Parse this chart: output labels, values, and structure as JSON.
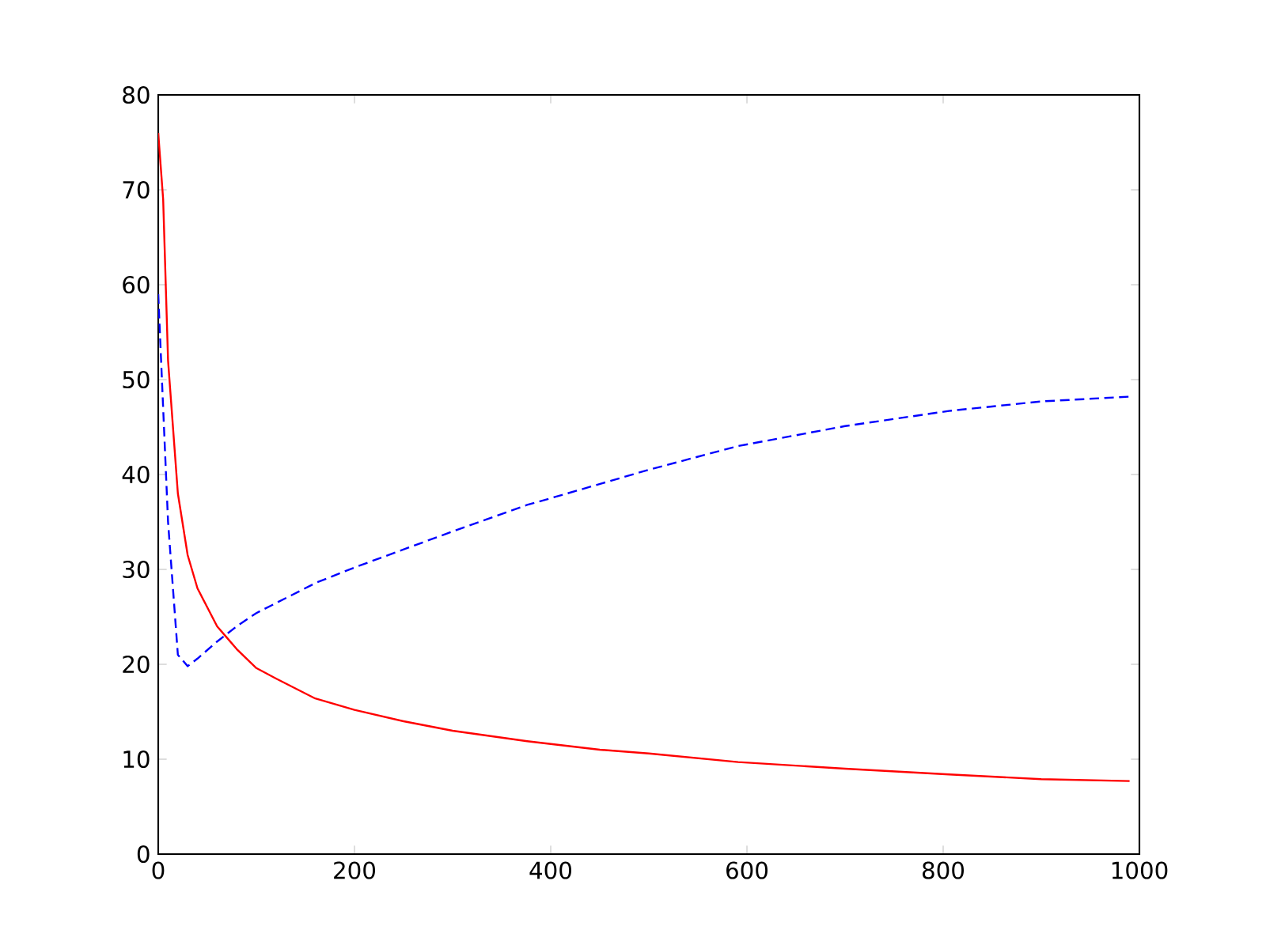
{
  "chart_data": {
    "type": "line",
    "xlim": [
      0,
      1000
    ],
    "ylim": [
      0,
      80
    ],
    "xticks": [
      0,
      200,
      400,
      600,
      800,
      1000
    ],
    "yticks": [
      0,
      10,
      20,
      30,
      40,
      50,
      60,
      70,
      80
    ],
    "series": [
      {
        "color": "#ff0000",
        "line_style": "solid",
        "x": [
          0,
          5,
          10,
          20,
          30,
          40,
          50,
          60,
          70,
          80,
          100,
          120,
          160,
          200,
          250,
          300,
          376,
          450,
          500,
          591,
          700,
          806,
          900,
          990
        ],
        "values": [
          76,
          69,
          52,
          38,
          31.5,
          28,
          26,
          24,
          22.8,
          21.6,
          19.6,
          18.5,
          16.4,
          15.2,
          14,
          13,
          11.9,
          11,
          10.6,
          9.7,
          9,
          8.4,
          7.9,
          7.7
        ]
      },
      {
        "color": "#0000ff",
        "line_style": "dashed",
        "x": [
          0,
          10,
          20,
          30,
          40,
          60,
          80,
          100,
          161,
          200,
          300,
          376,
          400,
          500,
          591,
          700,
          806,
          900,
          990
        ],
        "values": [
          59,
          35,
          21,
          19.8,
          20.6,
          22.4,
          24,
          25.4,
          28.6,
          30.2,
          34,
          36.8,
          37.5,
          40.5,
          43,
          45.1,
          46.7,
          47.7,
          48.2
        ]
      }
    ]
  }
}
